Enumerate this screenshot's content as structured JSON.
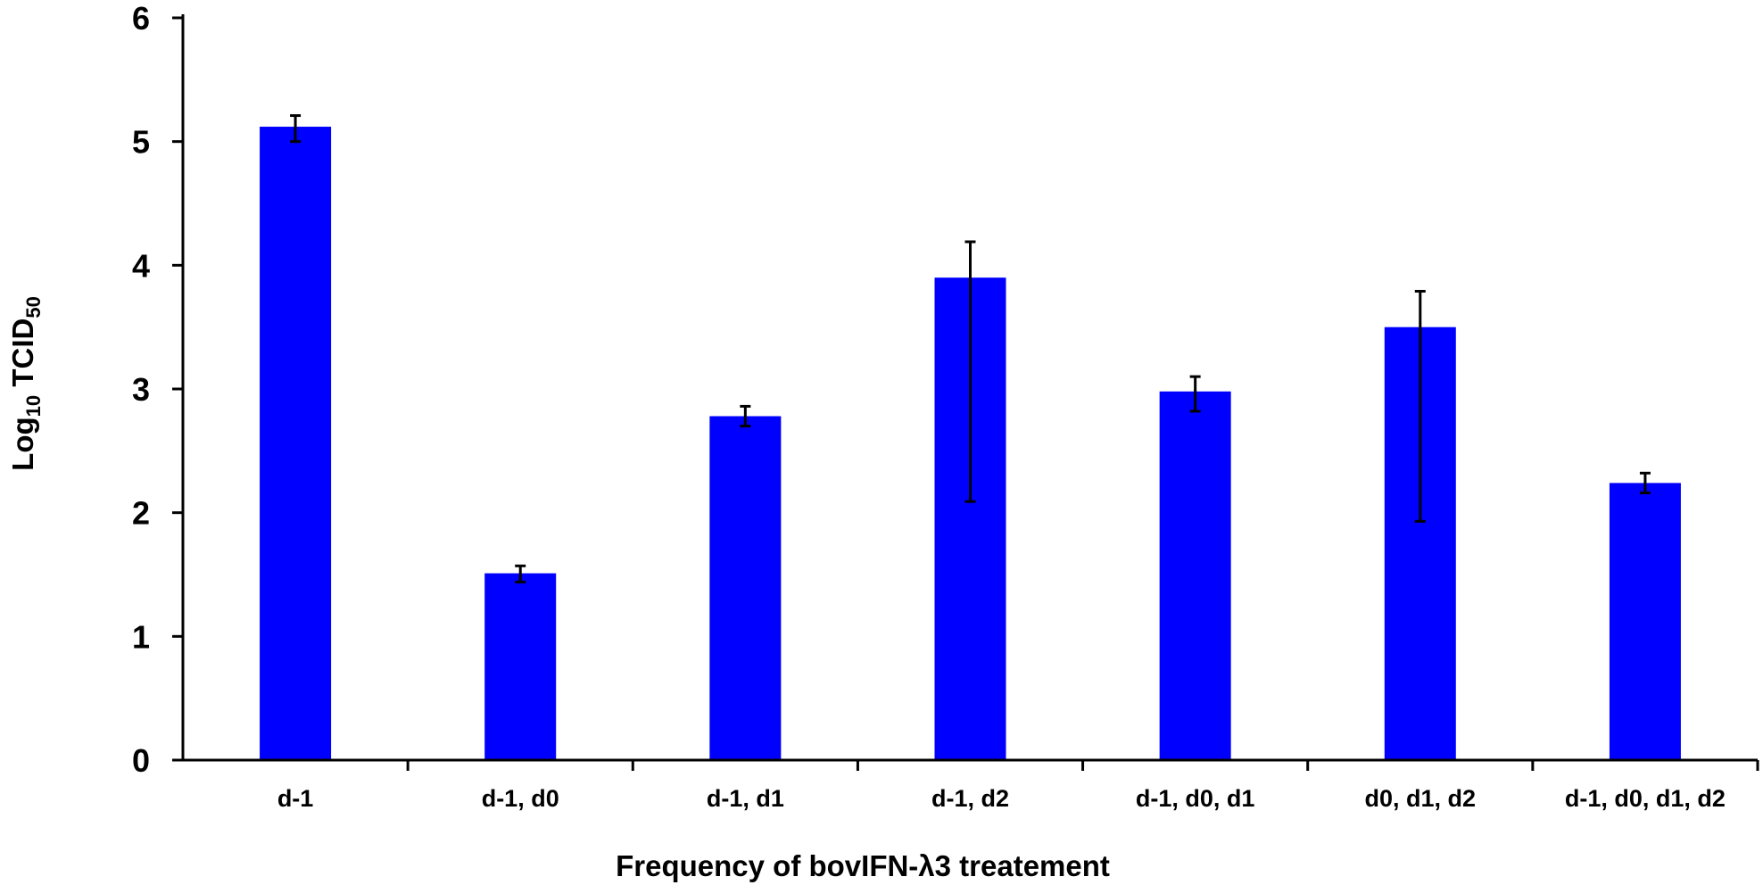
{
  "chart_data": {
    "type": "bar",
    "title": "",
    "xlabel": "Frequency of bovIFN-λ3 treatement",
    "ylabel": {
      "prefix": "Log",
      "prefix_sub": "10",
      "main": " TCID",
      "main_sub": "50"
    },
    "categories": [
      "d-1",
      "d-1, d0",
      "d-1, d1",
      "d-1, d2",
      "d-1, d0, d1",
      "d0, d1, d2",
      "d-1, d0, d1, d2"
    ],
    "values": [
      5.12,
      1.51,
      2.78,
      3.9,
      2.98,
      3.5,
      2.24
    ],
    "error_low": [
      5.0,
      1.44,
      2.7,
      2.09,
      2.82,
      1.93,
      2.16
    ],
    "error_high": [
      5.21,
      1.57,
      2.86,
      4.19,
      3.1,
      3.79,
      2.32
    ],
    "ylim": [
      0,
      6
    ],
    "yticks": [
      0,
      1,
      2,
      3,
      4,
      5,
      6
    ],
    "grid": false,
    "legend": "none",
    "colors": {
      "bar": "#0000ff",
      "axis": "#000000",
      "error_bar": "#000000"
    }
  }
}
